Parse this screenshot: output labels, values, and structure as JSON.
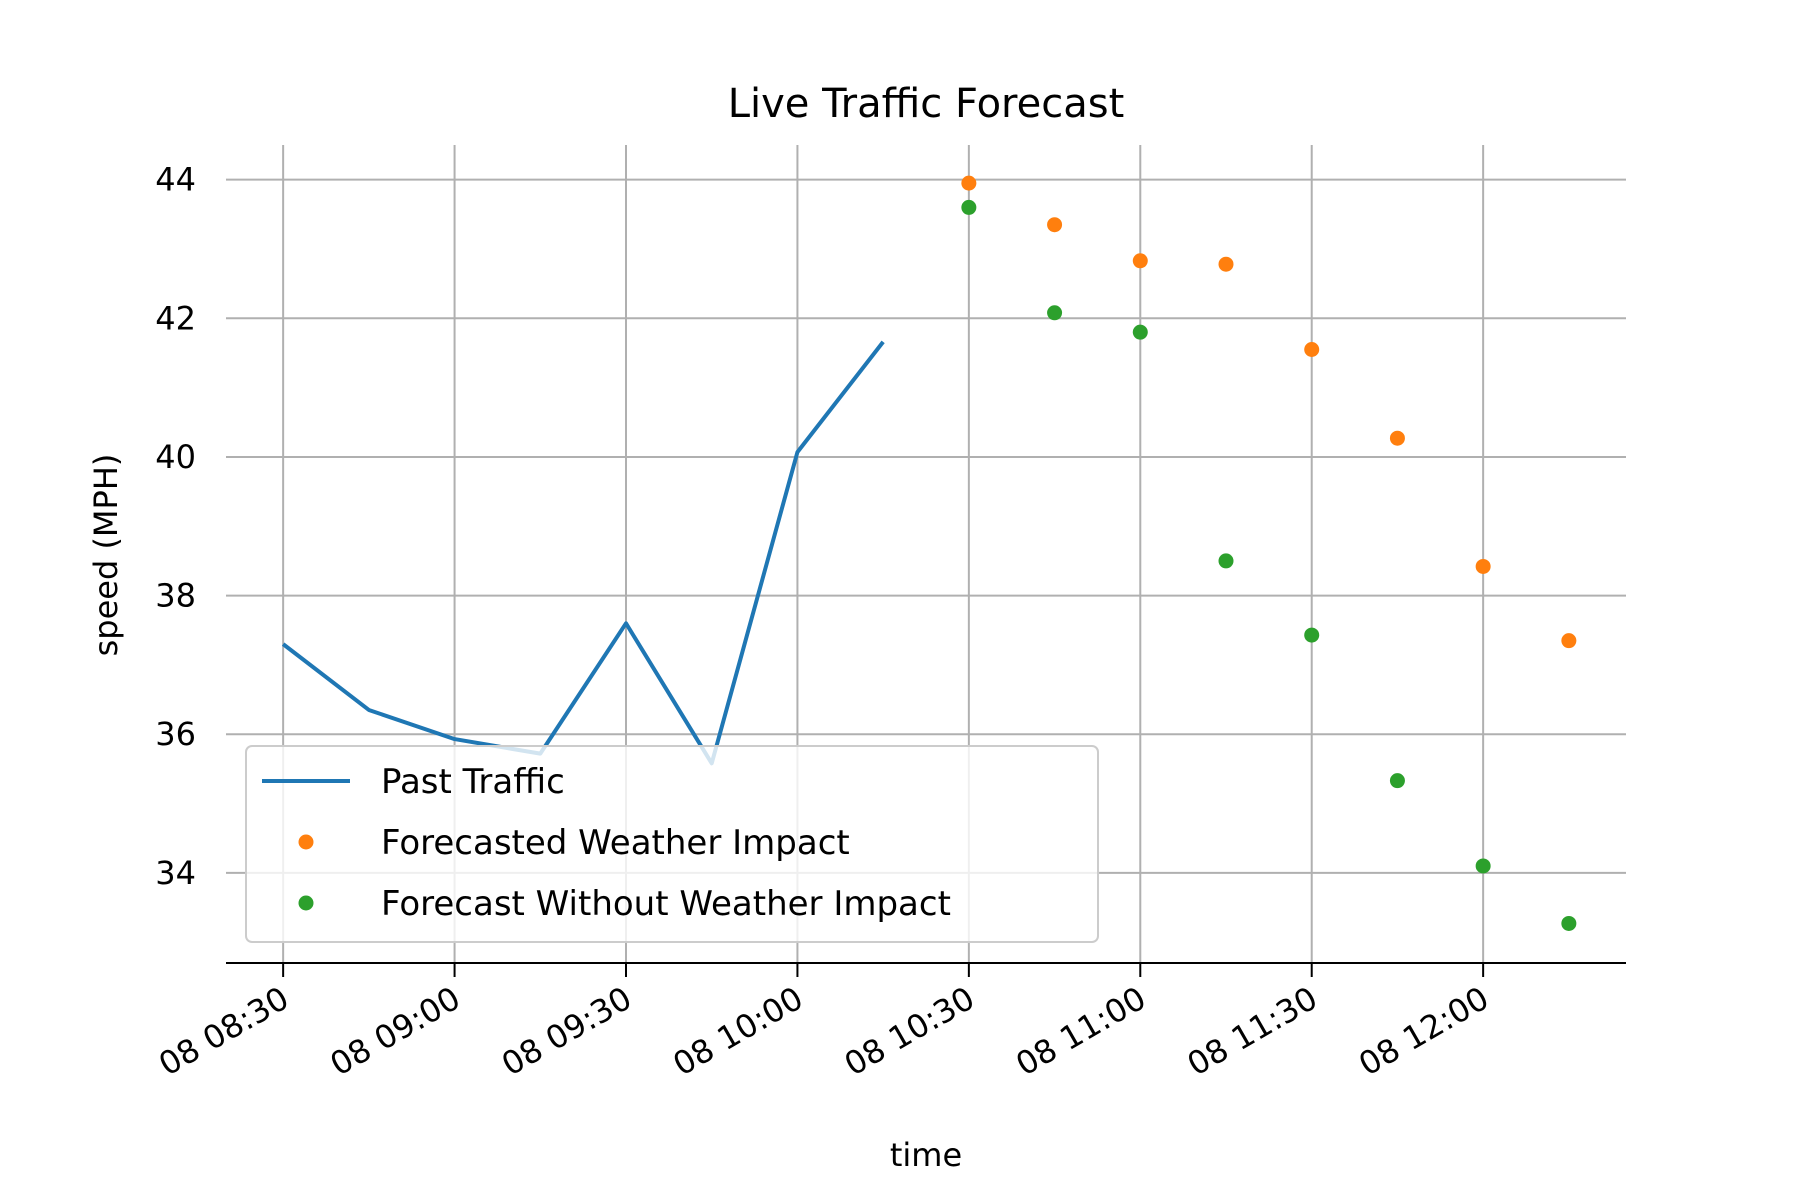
{
  "chart_data": {
    "type": "line",
    "title": "Live Traffic Forecast",
    "xlabel": "time",
    "ylabel": "speed (MPH)",
    "ylim": [
      32.7,
      44.5
    ],
    "yticks": [
      34,
      36,
      38,
      40,
      42,
      44
    ],
    "xlim": [
      "08 08:20",
      "08 12:25"
    ],
    "xticks": [
      "08 08:30",
      "08 09:00",
      "08 09:30",
      "08 10:00",
      "08 10:30",
      "08 11:00",
      "08 11:30",
      "08 12:00"
    ],
    "grid": true,
    "legend_position": "lower-left",
    "series": [
      {
        "name": "Past Traffic",
        "type": "line",
        "color": "#1f77b4",
        "x": [
          "08 08:30",
          "08 08:45",
          "08 09:00",
          "08 09:15",
          "08 09:30",
          "08 09:45",
          "08 10:00",
          "08 10:15"
        ],
        "y": [
          37.3,
          36.35,
          35.93,
          35.72,
          37.6,
          35.58,
          40.07,
          41.66
        ]
      },
      {
        "name": "Forecasted Weather Impact",
        "type": "scatter",
        "color": "#ff7f0e",
        "x": [
          "08 10:30",
          "08 10:45",
          "08 11:00",
          "08 11:15",
          "08 11:30",
          "08 11:45",
          "08 12:00",
          "08 12:15"
        ],
        "y": [
          43.95,
          43.35,
          42.83,
          42.78,
          41.55,
          40.27,
          38.42,
          37.35
        ]
      },
      {
        "name": "Forecast Without Weather Impact",
        "type": "scatter",
        "color": "#2ca02c",
        "x": [
          "08 10:30",
          "08 10:45",
          "08 11:00",
          "08 11:15",
          "08 11:30",
          "08 11:45",
          "08 12:00",
          "08 12:15"
        ],
        "y": [
          43.6,
          42.08,
          41.8,
          38.5,
          37.43,
          35.33,
          34.1,
          33.27
        ]
      }
    ]
  }
}
